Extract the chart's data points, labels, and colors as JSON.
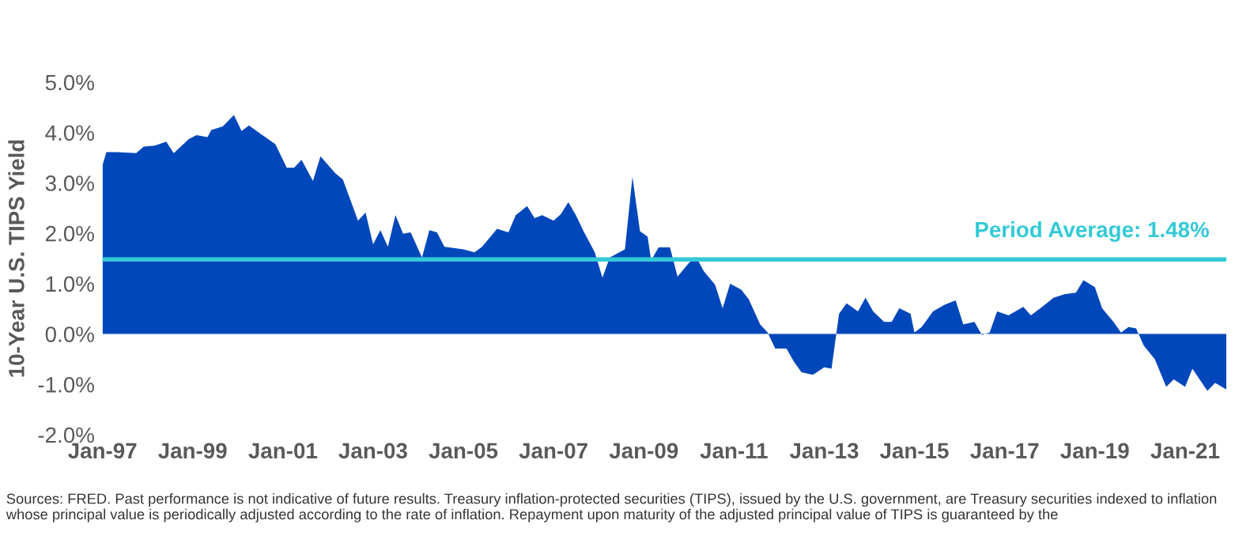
{
  "chart_data": {
    "type": "area",
    "ylabel": "10-Year U.S. TIPS Yield",
    "x": [
      "1997-01",
      "1997-02",
      "1997-05",
      "1997-10",
      "1997-12",
      "1998-03",
      "1998-06",
      "1998-08",
      "1998-12",
      "1999-02",
      "1999-05",
      "1999-06",
      "1999-09",
      "1999-12",
      "2000-02",
      "2000-04",
      "2000-07",
      "2000-11",
      "2001-02",
      "2001-04",
      "2001-06",
      "2001-09",
      "2001-11",
      "2002-03",
      "2002-05",
      "2002-09",
      "2002-11",
      "2003-01",
      "2003-03",
      "2003-05",
      "2003-07",
      "2003-09",
      "2003-11",
      "2004-02",
      "2004-04",
      "2004-06",
      "2004-08",
      "2005-01",
      "2005-04",
      "2005-06",
      "2005-10",
      "2006-01",
      "2006-03",
      "2006-06",
      "2006-08",
      "2006-10",
      "2007-01",
      "2007-03",
      "2007-05",
      "2007-07",
      "2007-09",
      "2007-12",
      "2008-02",
      "2008-04",
      "2008-08",
      "2008-10",
      "2008-12",
      "2009-02",
      "2009-03",
      "2009-05",
      "2009-08",
      "2009-10",
      "2010-01",
      "2010-03",
      "2010-05",
      "2010-08",
      "2010-10",
      "2010-12",
      "2011-03",
      "2011-05",
      "2011-08",
      "2011-10",
      "2011-12",
      "2012-03",
      "2012-05",
      "2012-07",
      "2012-10",
      "2013-01",
      "2013-03",
      "2013-05",
      "2013-07",
      "2013-10",
      "2013-12",
      "2014-02",
      "2014-05",
      "2014-07",
      "2014-09",
      "2014-12",
      "2015-01",
      "2015-03",
      "2015-06",
      "2015-09",
      "2015-12",
      "2016-02",
      "2016-05",
      "2016-07",
      "2016-09",
      "2016-11",
      "2017-02",
      "2017-06",
      "2017-08",
      "2017-11",
      "2018-02",
      "2018-05",
      "2018-08",
      "2018-10",
      "2019-01",
      "2019-03",
      "2019-06",
      "2019-08",
      "2019-10",
      "2019-12",
      "2020-02",
      "2020-05",
      "2020-08",
      "2020-10",
      "2021-01",
      "2021-03",
      "2021-07",
      "2021-09",
      "2021-12"
    ],
    "series": [
      {
        "color": "#0047bb",
        "values": [
          3.35,
          3.61,
          3.61,
          3.59,
          3.72,
          3.74,
          3.82,
          3.59,
          3.87,
          3.95,
          3.91,
          4.05,
          4.12,
          4.35,
          4.03,
          4.14,
          3.98,
          3.77,
          3.3,
          3.3,
          3.46,
          3.04,
          3.53,
          3.19,
          3.07,
          2.25,
          2.41,
          1.78,
          2.06,
          1.73,
          2.36,
          1.99,
          2.02,
          1.52,
          2.06,
          2.02,
          1.73,
          1.68,
          1.62,
          1.73,
          2.09,
          2.02,
          2.36,
          2.54,
          2.3,
          2.36,
          2.25,
          2.38,
          2.62,
          2.36,
          2.04,
          1.62,
          1.12,
          1.52,
          1.68,
          3.12,
          2.04,
          1.93,
          1.46,
          1.72,
          1.72,
          1.14,
          1.41,
          1.53,
          1.25,
          0.98,
          0.51,
          1.0,
          0.88,
          0.69,
          0.19,
          0.03,
          -0.29,
          -0.29,
          -0.55,
          -0.76,
          -0.81,
          -0.66,
          -0.69,
          0.4,
          0.61,
          0.45,
          0.72,
          0.45,
          0.24,
          0.24,
          0.51,
          0.4,
          0.03,
          0.14,
          0.45,
          0.58,
          0.67,
          0.19,
          0.24,
          -0.02,
          0.03,
          0.45,
          0.37,
          0.54,
          0.37,
          0.54,
          0.72,
          0.79,
          0.82,
          1.07,
          0.93,
          0.51,
          0.24,
          0.03,
          0.14,
          0.11,
          -0.23,
          -0.5,
          -1.05,
          -0.9,
          -1.05,
          -0.69,
          -1.13,
          -0.97,
          -1.1
        ]
      }
    ],
    "xlim": [
      "1997-01",
      "2021-12"
    ],
    "xticks": [
      {
        "value": "1997-01",
        "label": "Jan-97"
      },
      {
        "value": "1999-01",
        "label": "Jan-99"
      },
      {
        "value": "2001-01",
        "label": "Jan-01"
      },
      {
        "value": "2003-01",
        "label": "Jan-03"
      },
      {
        "value": "2005-01",
        "label": "Jan-05"
      },
      {
        "value": "2007-01",
        "label": "Jan-07"
      },
      {
        "value": "2009-01",
        "label": "Jan-09"
      },
      {
        "value": "2011-01",
        "label": "Jan-11"
      },
      {
        "value": "2013-01",
        "label": "Jan-13"
      },
      {
        "value": "2015-01",
        "label": "Jan-15"
      },
      {
        "value": "2017-01",
        "label": "Jan-17"
      },
      {
        "value": "2019-01",
        "label": "Jan-19"
      },
      {
        "value": "2021-01",
        "label": "Jan-21"
      }
    ],
    "ylim": [
      -2,
      5
    ],
    "yticks": [
      {
        "value": -2,
        "label": "-2.0%"
      },
      {
        "value": -1,
        "label": "-1.0%"
      },
      {
        "value": 0,
        "label": "0.0%"
      },
      {
        "value": 1,
        "label": "1.0%"
      },
      {
        "value": 2,
        "label": "2.0%"
      },
      {
        "value": 3,
        "label": "3.0%"
      },
      {
        "value": 4,
        "label": "4.0%"
      },
      {
        "value": 5,
        "label": "5.0%"
      }
    ],
    "ref_lines": [
      {
        "axis": "y",
        "value": 1.48,
        "label": "Period Average: 1.48%",
        "color": "#33c9d6"
      }
    ],
    "grid": false,
    "legend": false,
    "annotations": [
      "Sources: FRED. Past performance is not indicative of future results. Treasury inflation-protected securities (TIPS), issued by the U.S. government, are Treasury securities indexed to inflation whose principal value is periodically adjusted according to the rate of inflation. Repayment upon maturity of the adjusted principal value of TIPS is guaranteed by the"
    ]
  }
}
